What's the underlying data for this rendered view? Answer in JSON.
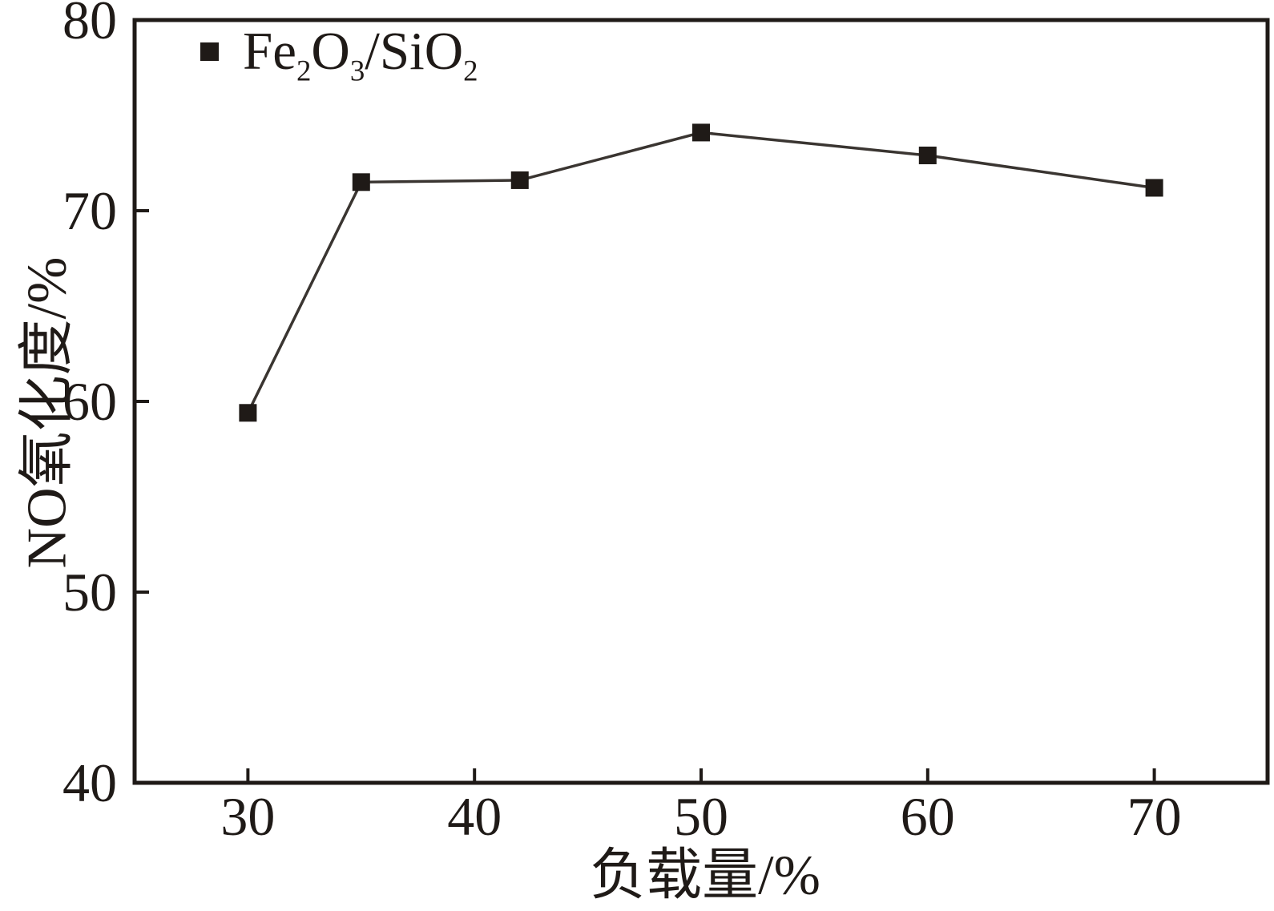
{
  "chart_data": {
    "type": "line",
    "title": "",
    "xlabel": "负载量/%",
    "ylabel": "NO氧化度/%",
    "xlim": [
      25,
      75
    ],
    "ylim": [
      40,
      80
    ],
    "xticks": [
      30,
      40,
      50,
      60,
      70
    ],
    "yticks": [
      40,
      50,
      60,
      70,
      80
    ],
    "grid": false,
    "legend_position": "top-left-inside",
    "series": [
      {
        "name": "Fe2O3/SiO2",
        "marker": "square",
        "x": [
          30,
          35,
          42,
          50,
          60,
          70
        ],
        "y": [
          59.4,
          71.5,
          71.6,
          74.1,
          72.9,
          71.2
        ]
      }
    ],
    "legend": {
      "marker": "square-icon",
      "label_parts": [
        {
          "t": "Fe"
        },
        {
          "t": "2",
          "sub": true
        },
        {
          "t": "O"
        },
        {
          "t": "3",
          "sub": true
        },
        {
          "t": "/SiO"
        },
        {
          "t": "2",
          "sub": true
        }
      ]
    }
  },
  "colors": {
    "background": "#ffffff",
    "axis": "#1f1a17",
    "line": "#3a3531",
    "marker": "#1f1a17",
    "text": "#1f1a17"
  }
}
